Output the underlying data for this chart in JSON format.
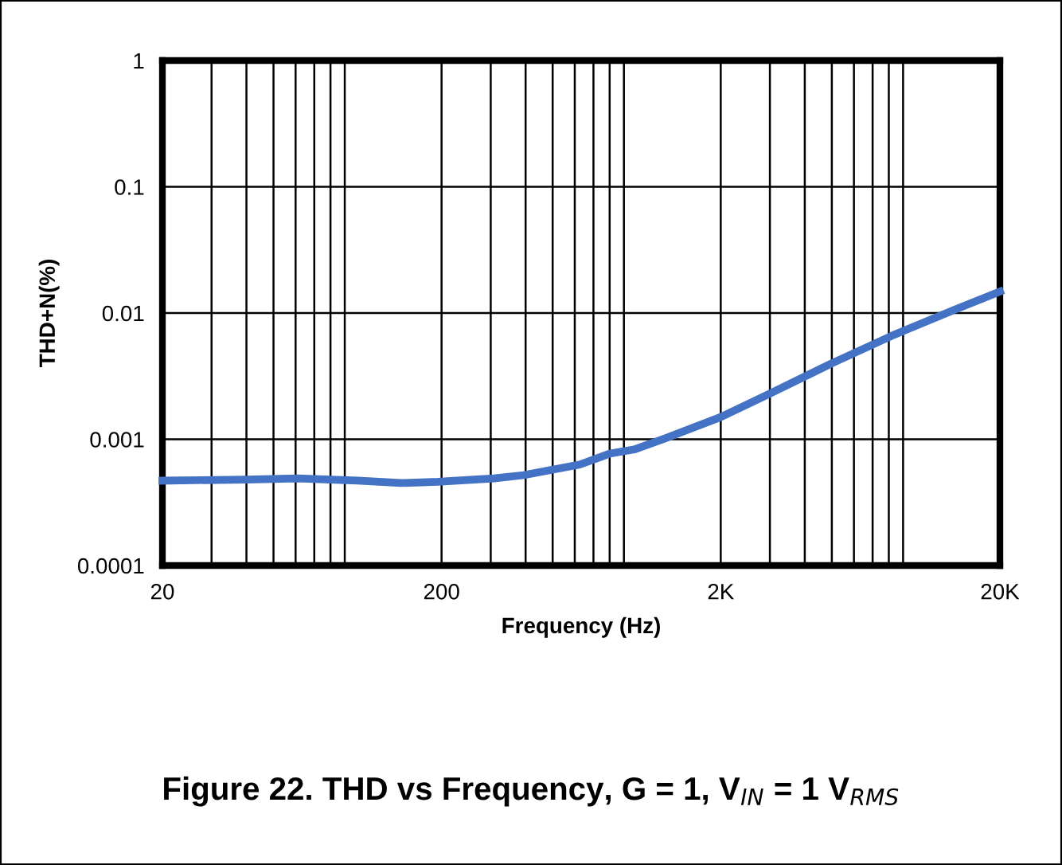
{
  "chart_data": {
    "type": "line",
    "title": "Figure 22. THD vs Frequency, G = 1, V$_{IN}$ = 1 V$_{RMS}$",
    "xlabel": "Frequency (Hz)",
    "ylabel": "THD+N(%)",
    "x": [
      20,
      40,
      61,
      100,
      143,
      194,
      308,
      394,
      625,
      801,
      980,
      1270,
      2000,
      3000,
      5000,
      8200,
      13900,
      20000
    ],
    "series": [
      {
        "color": "#4472c4",
        "values": [
          0.00047,
          0.00048,
          0.00049,
          0.00047,
          0.00045,
          0.00046,
          0.00049,
          0.00052,
          0.00063,
          0.00077,
          0.00083,
          0.00102,
          0.0015,
          0.0023,
          0.004,
          0.0066,
          0.0107,
          0.0148
        ]
      }
    ],
    "log": "xy",
    "xlim": [
      20,
      20000
    ],
    "ylim": [
      0.0001,
      1
    ],
    "xticks": [
      20,
      200,
      {
        "value": 2000,
        "label": "2K"
      },
      {
        "value": 20000,
        "label": "20K"
      }
    ],
    "yticks": [
      0.0001,
      0.001,
      0.01,
      0.1,
      1
    ],
    "grid": true,
    "legend": false,
    "marker": "none",
    "line_style": "solid"
  }
}
